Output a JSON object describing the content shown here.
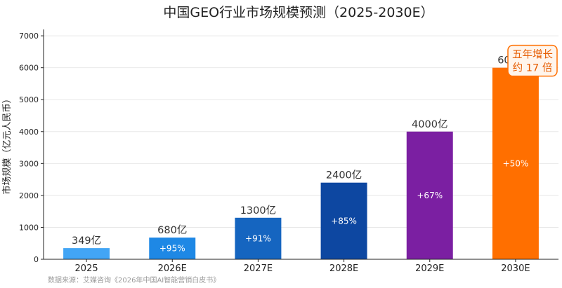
{
  "chart_data": {
    "type": "bar",
    "title": "中国GEO行业市场规模预测（2025-2030E）",
    "ylabel": "市场规模（亿元人民币）",
    "xlabel": "",
    "ylim": [
      0,
      7200
    ],
    "yticks": [
      0,
      1000,
      2000,
      3000,
      4000,
      5000,
      6000,
      7000
    ],
    "grid": "horizontal",
    "categories": [
      "2025",
      "2026E",
      "2027E",
      "2028E",
      "2029E",
      "2030E"
    ],
    "values": [
      349,
      680,
      1300,
      2400,
      4000,
      6000
    ],
    "value_labels": [
      "349亿",
      "680亿",
      "1300亿",
      "2400亿",
      "4000亿",
      "6000亿"
    ],
    "growth_labels": [
      "",
      "+95%",
      "+91%",
      "+85%",
      "+67%",
      "+50%"
    ],
    "colors": [
      "#42a5f5",
      "#1e88e5",
      "#1565c0",
      "#0d47a1",
      "#7b1fa2",
      "#ff6f00"
    ],
    "annotation": {
      "lines": [
        "五年增长",
        "约 17 倍"
      ],
      "attached_to": "2030E"
    },
    "source": "数据来源：艾媒咨询《2026年中国AI智能营销白皮书》"
  }
}
